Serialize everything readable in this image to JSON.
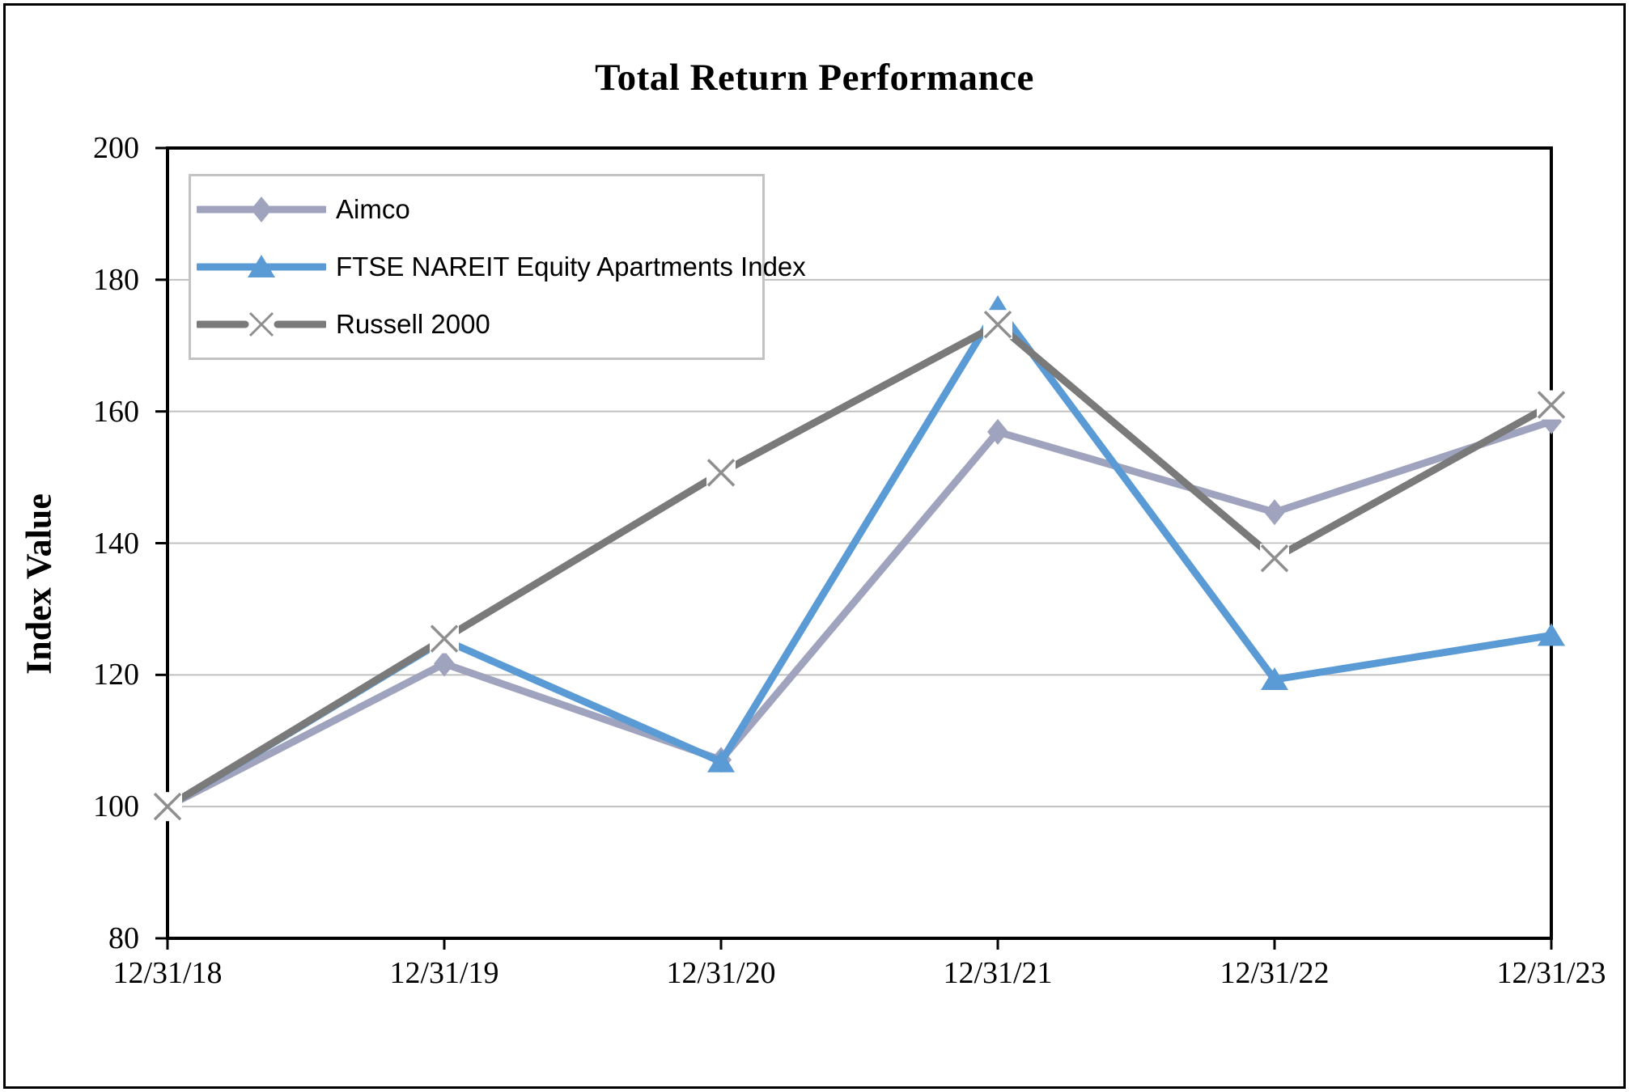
{
  "page": {
    "background_color": "#FFFFFF",
    "border_color": "#000000"
  },
  "chart_data": {
    "type": "line",
    "title": "Total Return Performance",
    "ylabel": "Index Value",
    "xlabel": "",
    "x": [
      "12/31/18",
      "12/31/19",
      "12/31/20",
      "12/31/21",
      "12/31/22",
      "12/31/23"
    ],
    "ylim": [
      80,
      200
    ],
    "yticks": [
      80,
      100,
      120,
      140,
      160,
      180,
      200
    ],
    "grid": "horizontal-only",
    "gridline_color": "#C0C0C0",
    "axis_color": "#000000",
    "legend_position": "top-left-inside",
    "legend_border_color": "#C3C3C3",
    "series": [
      {
        "name": "Aimco",
        "marker": "diamond",
        "color": "#9FA3BD",
        "values": [
          100,
          121.7,
          107.1,
          156.9,
          144.7,
          158.5
        ]
      },
      {
        "name": "FTSE NAREIT Equity Apartments Index",
        "marker": "triangle",
        "color": "#5B9BD5",
        "values": [
          100,
          125.3,
          106.8,
          175.8,
          119.3,
          126.0
        ]
      },
      {
        "name": "Russell 2000",
        "marker": "x",
        "color": "#7A7A7A",
        "marker_color": "#8F8F8F",
        "values": [
          100,
          125.5,
          150.7,
          173.2,
          137.7,
          161.0
        ]
      }
    ]
  }
}
